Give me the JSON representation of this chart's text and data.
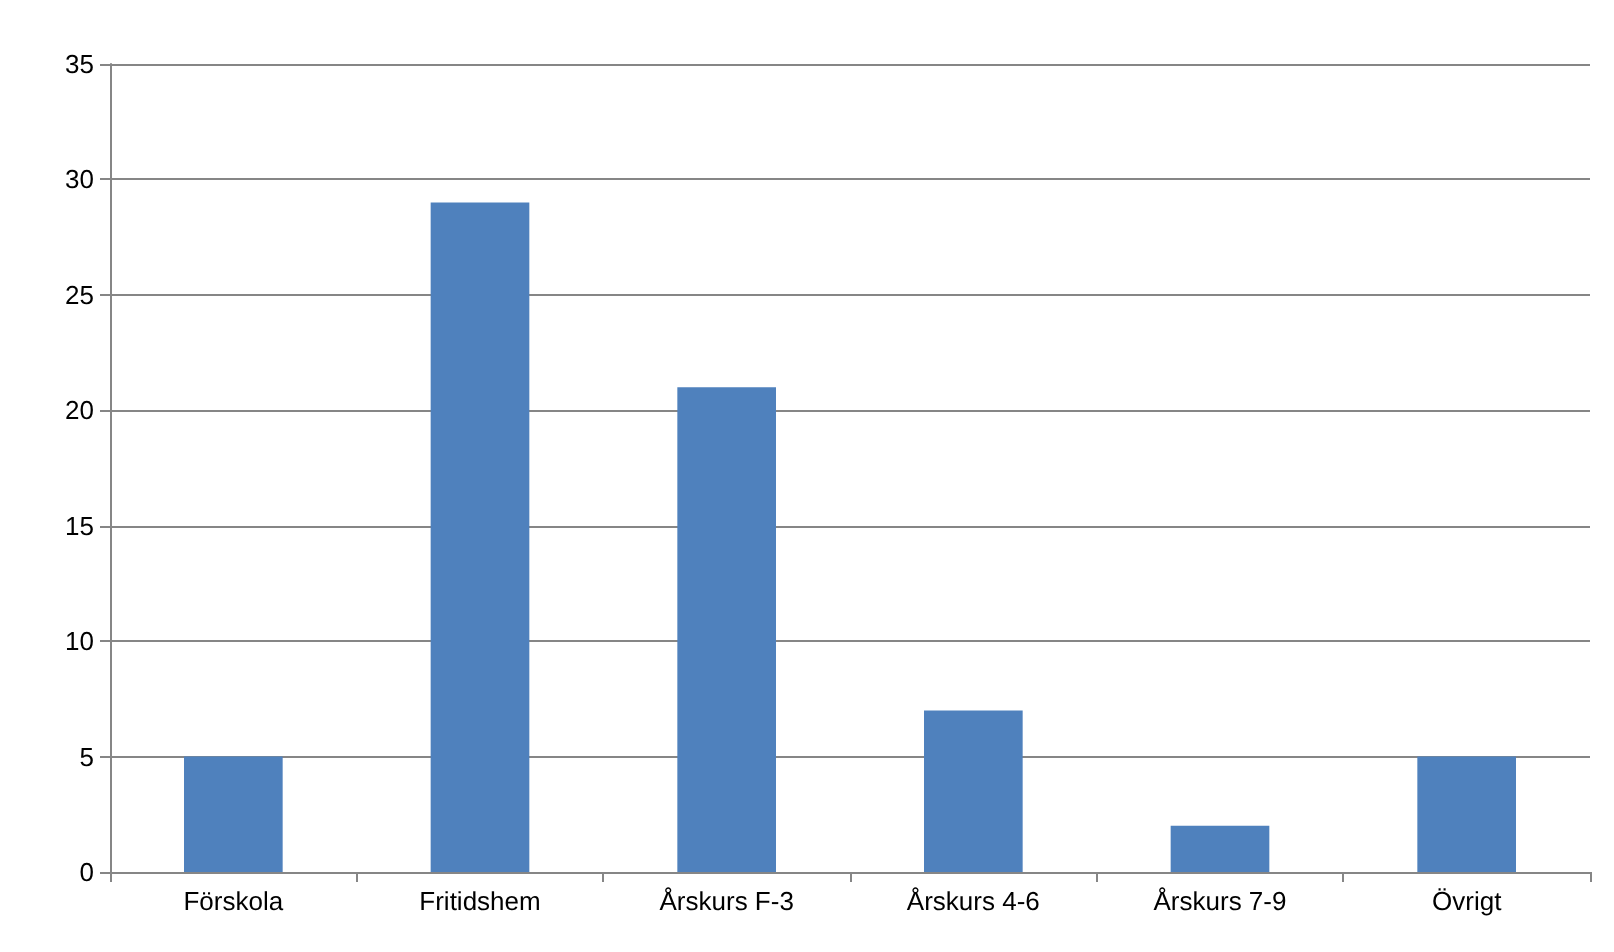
{
  "chart_data": {
    "type": "bar",
    "categories": [
      "Förskola",
      "Fritidshem",
      "Årskurs F-3",
      "Årskurs 4-6",
      "Årskurs 7-9",
      "Övrigt"
    ],
    "values": [
      5,
      29,
      21,
      7,
      2,
      5
    ],
    "color": "#4f81bd",
    "ylim": [
      0,
      35
    ],
    "yticks": [
      0,
      5,
      10,
      15,
      20,
      25,
      30,
      35
    ],
    "grid": "y"
  }
}
